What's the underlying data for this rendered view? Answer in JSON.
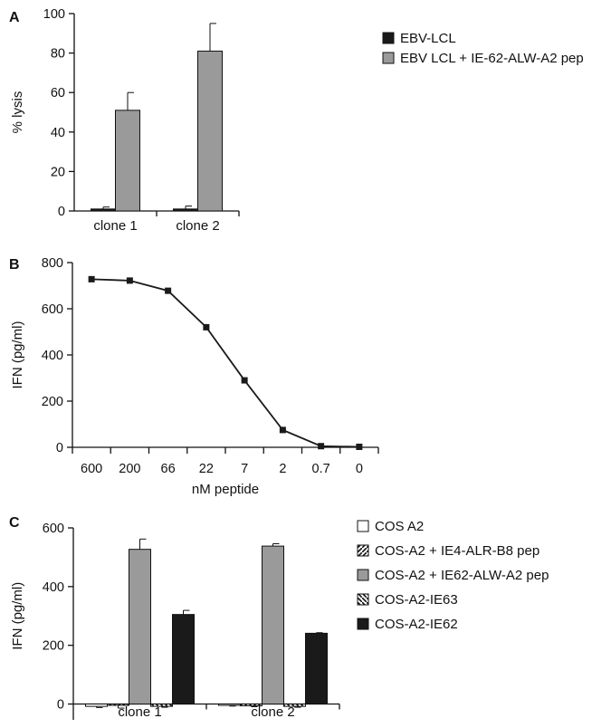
{
  "chart_data": [
    {
      "panel": "A",
      "type": "bar",
      "ylabel": "% lysis",
      "xlabel": "",
      "ylim": [
        0,
        100
      ],
      "yticks": [
        0,
        20,
        40,
        60,
        80,
        100
      ],
      "categories": [
        "clone 1",
        "clone 2"
      ],
      "legend_position": "top-right",
      "series": [
        {
          "name": "EBV-LCL",
          "values": [
            1,
            1
          ],
          "errors": [
            1,
            1.5
          ],
          "color": "#1a1a1a",
          "pattern": "solid"
        },
        {
          "name": "EBV LCL + IE-62-ALW-A2 pep",
          "values": [
            51,
            81
          ],
          "errors": [
            9,
            14
          ],
          "color": "#9a9a9a",
          "pattern": "solid"
        }
      ]
    },
    {
      "panel": "B",
      "type": "line",
      "ylabel": "IFN (pg/ml)",
      "xlabel": "nM peptide",
      "ylim": [
        0,
        800
      ],
      "yticks": [
        0,
        200,
        400,
        600,
        800
      ],
      "categories": [
        "600",
        "200",
        "66",
        "22",
        "7",
        "2",
        "0.7",
        "0"
      ],
      "series": [
        {
          "values": [
            728,
            722,
            678,
            520,
            290,
            75,
            5,
            2
          ],
          "color": "#1a1a1a"
        }
      ]
    },
    {
      "panel": "C",
      "type": "bar",
      "ylabel": "IFN (pg/ml)",
      "xlabel": "",
      "ylim": [
        -20,
        600
      ],
      "yticks": [
        0,
        200,
        400,
        600
      ],
      "categories": [
        "clone 1",
        "clone 2"
      ],
      "legend_position": "top-right",
      "series": [
        {
          "name": "COS A2",
          "values": [
            -8,
            -4
          ],
          "errors": [
            4,
            3
          ],
          "color": "#ffffff",
          "pattern": "solid"
        },
        {
          "name": "COS-A2 + IE4-ALR-B8 pep",
          "values": [
            -4,
            -6
          ],
          "errors": [
            10,
            3
          ],
          "color": "#ffffff",
          "pattern": "hatch-fwd"
        },
        {
          "name": "COS-A2 + IE62-ALW-A2 pep",
          "values": [
            527,
            538
          ],
          "errors": [
            35,
            8
          ],
          "color": "#9a9a9a",
          "pattern": "solid"
        },
        {
          "name": "COS-A2-IE63",
          "values": [
            -8,
            -8
          ],
          "errors": [
            3,
            3
          ],
          "color": "#ffffff",
          "pattern": "hatch-back"
        },
        {
          "name": "COS-A2-IE62",
          "values": [
            305,
            241
          ],
          "errors": [
            14,
            2
          ],
          "color": "#1a1a1a",
          "pattern": "solid"
        }
      ]
    }
  ]
}
